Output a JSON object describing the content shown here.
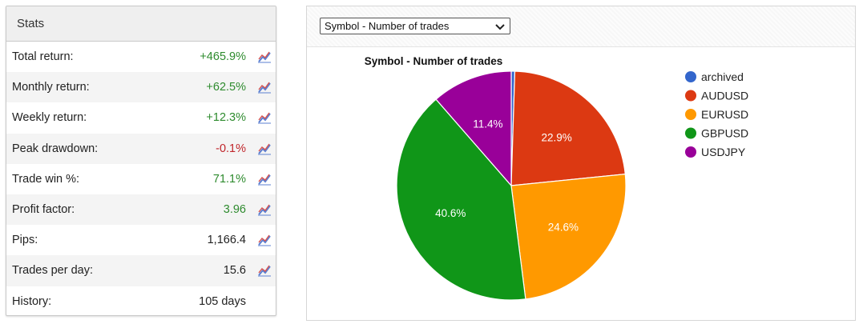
{
  "stats": {
    "title": "Stats",
    "rows": [
      {
        "label": "Total return:",
        "value": "+465.9%",
        "tone": "pos",
        "icon": "chart-line-icon"
      },
      {
        "label": "Monthly return:",
        "value": "+62.5%",
        "tone": "pos",
        "icon": "chart-line-icon"
      },
      {
        "label": "Weekly return:",
        "value": "+12.3%",
        "tone": "pos",
        "icon": "chart-line-icon"
      },
      {
        "label": "Peak drawdown:",
        "value": "-0.1%",
        "tone": "neg",
        "icon": "chart-line-icon"
      },
      {
        "label": "Trade win %:",
        "value": "71.1%",
        "tone": "pos",
        "icon": "chart-line-icon"
      },
      {
        "label": "Profit factor:",
        "value": "3.96",
        "tone": "pos",
        "icon": "chart-line-icon"
      },
      {
        "label": "Pips:",
        "value": "1,166.4",
        "tone": "neu",
        "icon": "chart-line-icon"
      },
      {
        "label": "Trades per day:",
        "value": "15.6",
        "tone": "neu",
        "icon": "chart-line-icon"
      },
      {
        "label": "History:",
        "value": "105 days",
        "tone": "neu",
        "icon": ""
      }
    ]
  },
  "chart_selector": {
    "selected": "Symbol - Number of trades"
  },
  "colors": {
    "positive": "#2e8b2e",
    "negative": "#c0262b"
  },
  "chart_data": {
    "type": "pie",
    "title": "Symbol - Number of trades",
    "legend_position": "right",
    "slices": [
      {
        "name": "archived",
        "value": 0.5,
        "label": "",
        "color": "#3366cc"
      },
      {
        "name": "AUDUSD",
        "value": 22.9,
        "label": "22.9%",
        "color": "#dc3912"
      },
      {
        "name": "EURUSD",
        "value": 24.6,
        "label": "24.6%",
        "color": "#ff9900"
      },
      {
        "name": "GBPUSD",
        "value": 40.6,
        "label": "40.6%",
        "color": "#109618"
      },
      {
        "name": "USDJPY",
        "value": 11.4,
        "label": "11.4%",
        "color": "#990099"
      }
    ]
  }
}
